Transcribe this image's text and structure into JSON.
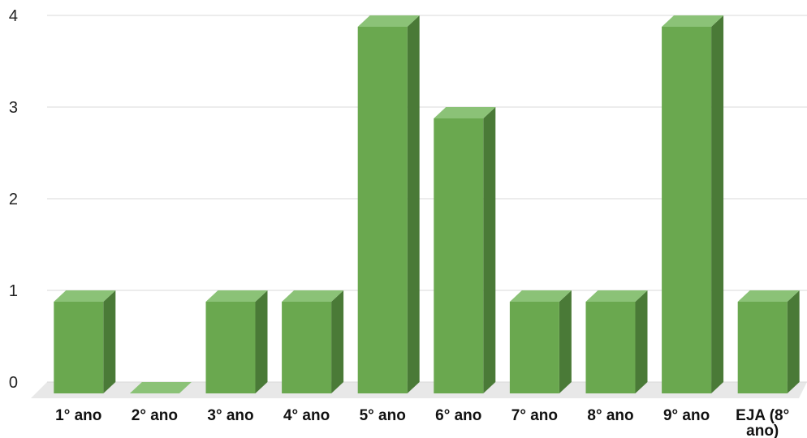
{
  "chart_data": {
    "type": "bar",
    "style": "3d-column",
    "categories": [
      "1° ano",
      "2° ano",
      "3° ano",
      "4° ano",
      "5° ano",
      "6° ano",
      "7° ano",
      "8° ano",
      "9° ano",
      "EJA (8° ano)"
    ],
    "category_lines": [
      [
        "1° ano"
      ],
      [
        "2° ano"
      ],
      [
        "3° ano"
      ],
      [
        "4° ano"
      ],
      [
        "5° ano"
      ],
      [
        "6° ano"
      ],
      [
        "7° ano"
      ],
      [
        "8° ano"
      ],
      [
        "9° ano"
      ],
      [
        "EJA (8°",
        "ano)"
      ]
    ],
    "values": [
      1,
      0,
      1,
      1,
      4,
      3,
      1,
      1,
      4,
      1
    ],
    "title": "",
    "xlabel": "",
    "ylabel": "",
    "ylim": [
      0,
      4
    ],
    "yticks": [
      0,
      1,
      2,
      3,
      4
    ],
    "grid": true,
    "legend": "none",
    "colors": {
      "bar_front": "#6aa84f",
      "bar_top": "#8bc277",
      "bar_side": "#4a7a37",
      "gridline": "#d9d9d9",
      "floor": "#e8e8e8"
    }
  }
}
